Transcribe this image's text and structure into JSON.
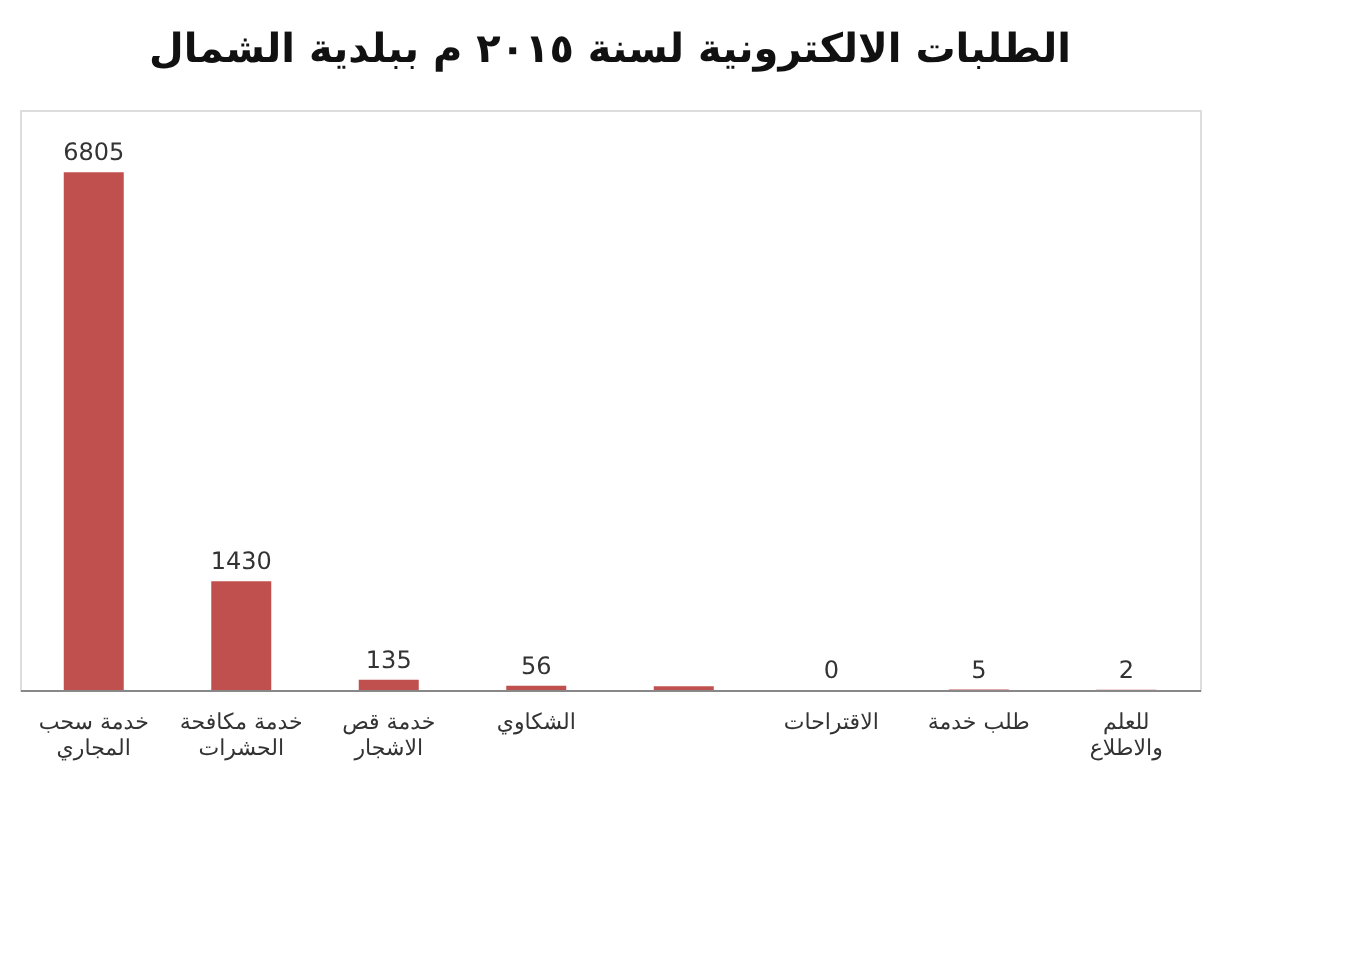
{
  "chart_data": {
    "type": "bar",
    "title": "الطلبات الالكترونية لسنة ٢٠١٥ م ببلدية الشمال",
    "categories": [
      "خدمة سحب المجاري",
      "خدمة مكافحة الحشرات",
      "خدمة قص الاشجار",
      "الشكاوي",
      null,
      "الاقتراحات",
      "طلب خدمة",
      "للعلم والاطلاع"
    ],
    "values": [
      6805,
      1430,
      135,
      56,
      50,
      0,
      5,
      2
    ],
    "value_labels": [
      "6805",
      "1430",
      "135",
      "56",
      null,
      "0",
      "5",
      "2"
    ],
    "color": "#c0504d"
  }
}
